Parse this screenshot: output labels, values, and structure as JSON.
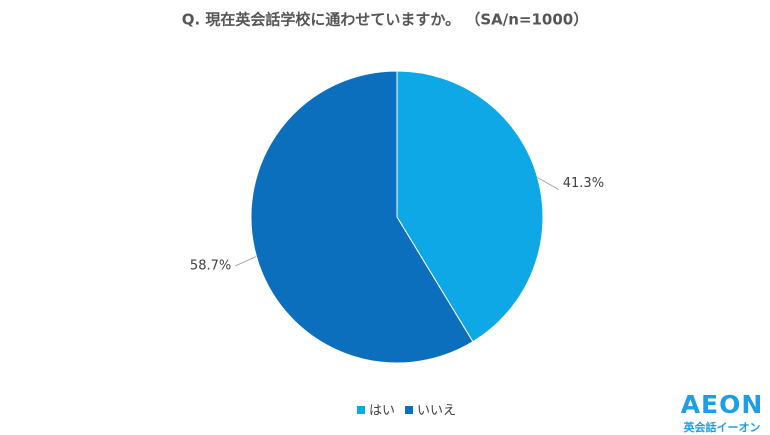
{
  "chart_data": {
    "type": "pie",
    "title": "Q. 現在英会話学校に通わせていますか。 （SA/n=1000）",
    "categories": [
      "はい",
      "いいえ"
    ],
    "values": [
      41.3,
      58.7
    ],
    "value_labels": [
      "41.3%",
      "58.7%"
    ],
    "colors": [
      "#0fa8e6",
      "#0b6fbd"
    ],
    "legend": "bottom"
  },
  "logo": {
    "brand": "AEON",
    "tagline": "英会話イーオン"
  }
}
